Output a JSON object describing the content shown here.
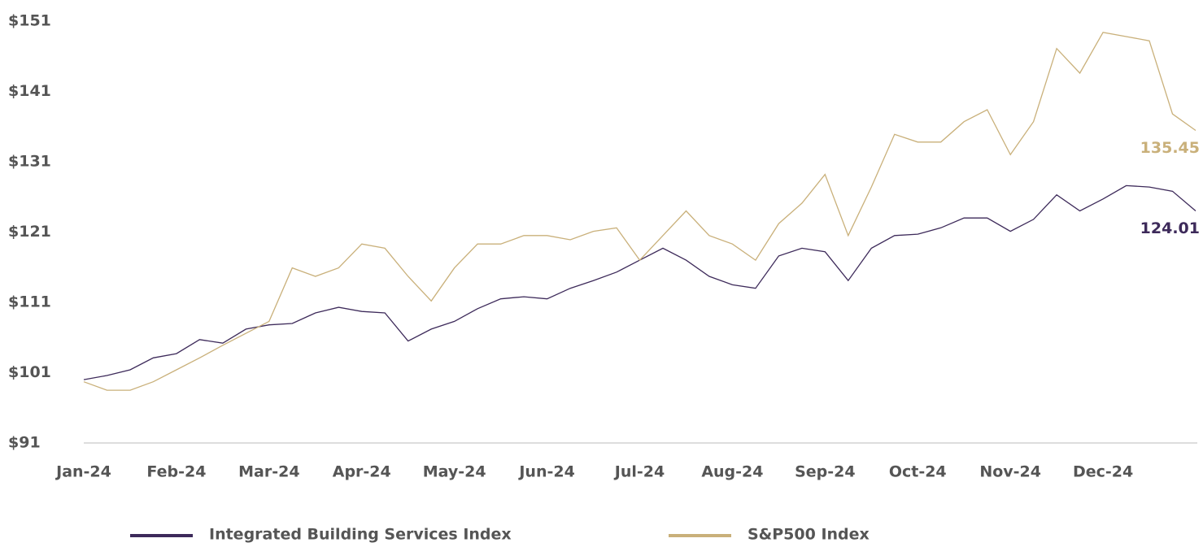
{
  "chart_data": {
    "type": "line",
    "categories": [
      "Jan-24",
      null,
      null,
      null,
      "Feb-24",
      null,
      null,
      null,
      "Mar-24",
      null,
      null,
      null,
      "Apr-24",
      null,
      null,
      null,
      "May-24",
      null,
      null,
      null,
      "Jun-24",
      null,
      null,
      null,
      "Jul-24",
      null,
      null,
      null,
      "Aug-24",
      null,
      null,
      null,
      "Sep-24",
      null,
      null,
      null,
      "Oct-24",
      null,
      null,
      null,
      "Nov-24",
      null,
      null,
      null,
      "Dec-24",
      null,
      null,
      null,
      null
    ],
    "series": [
      {
        "name": "Integrated Building Services Index",
        "color": "#3d2a5a",
        "values": [
          100.0,
          100.6,
          101.4,
          103.1,
          103.7,
          105.7,
          105.2,
          107.2,
          107.8,
          108.0,
          109.5,
          110.3,
          109.7,
          109.5,
          105.5,
          107.2,
          108.3,
          110.1,
          111.5,
          111.8,
          111.5,
          113.0,
          114.1,
          115.3,
          117.0,
          118.7,
          117.0,
          114.7,
          113.5,
          113.0,
          117.6,
          118.7,
          118.2,
          114.1,
          118.7,
          120.5,
          120.7,
          121.6,
          123.0,
          123.0,
          121.1,
          122.8,
          126.3,
          124.0,
          125.7,
          127.6,
          127.4,
          126.8,
          124.01
        ]
      },
      {
        "name": "S&P500 Index",
        "color": "#c9b07a",
        "values": [
          99.7,
          98.5,
          98.5,
          99.7,
          101.4,
          103.1,
          104.9,
          106.6,
          108.3,
          115.9,
          114.7,
          115.9,
          119.3,
          118.7,
          114.7,
          111.2,
          115.9,
          119.3,
          119.3,
          120.5,
          120.5,
          119.9,
          121.1,
          121.6,
          117.0,
          120.5,
          124.0,
          120.5,
          119.3,
          117.0,
          122.2,
          125.1,
          129.2,
          120.5,
          127.4,
          134.9,
          133.8,
          133.8,
          136.7,
          138.4,
          132.0,
          136.7,
          147.1,
          143.6,
          149.4,
          148.8,
          148.2,
          137.8,
          135.45
        ]
      }
    ],
    "ylim": [
      91,
      151
    ],
    "yticks": [
      {
        "value": 91,
        "label": "$91"
      },
      {
        "value": 101,
        "label": "$101"
      },
      {
        "value": 111,
        "label": "$111"
      },
      {
        "value": 121,
        "label": "$121"
      },
      {
        "value": 131,
        "label": "$131"
      },
      {
        "value": 141,
        "label": "$141"
      },
      {
        "value": 151,
        "label": "$151"
      }
    ],
    "grid": false
  }
}
